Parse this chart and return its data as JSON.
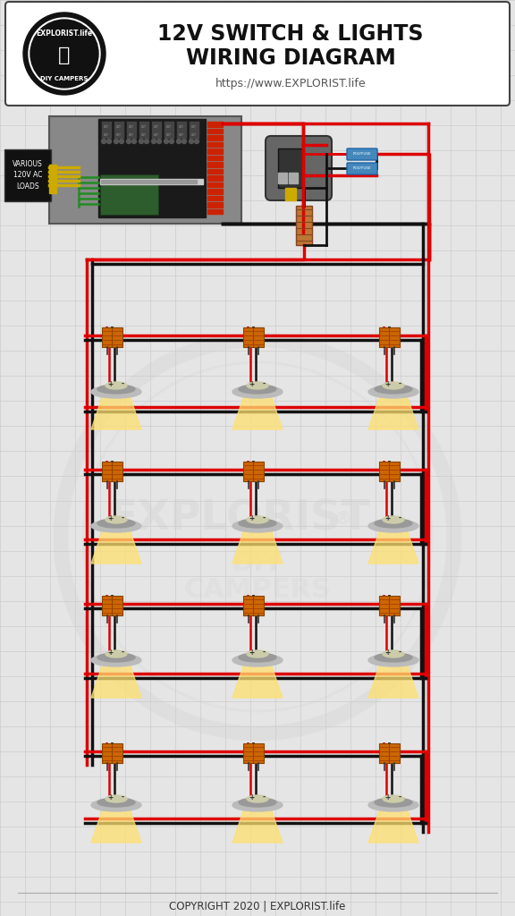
{
  "title_line1": "12V SWITCH & LIGHTS",
  "title_line2": "WIRING DIAGRAM",
  "subtitle": "https://www.EXPLORIST.life",
  "copyright": "COPYRIGHT 2020 | EXPLORIST.life",
  "bg_color": "#e5e5e5",
  "grid_color": "#cccccc",
  "header_bg": "#ffffff",
  "wire_red": "#dd0000",
  "wire_black": "#111111",
  "wire_yellow": "#ccaa00",
  "wire_green": "#228B22",
  "connector_orange": "#cc6600",
  "light_glow": "#ffe070",
  "fuse_blue": "#4488bb",
  "panel_gray": "#888888",
  "panel_dark": "#222222",
  "panel_green_board": "#2d5c2d",
  "led_red": "#cc2200",
  "plug_gray": "#666666",
  "comp_orange": "#bb7733"
}
